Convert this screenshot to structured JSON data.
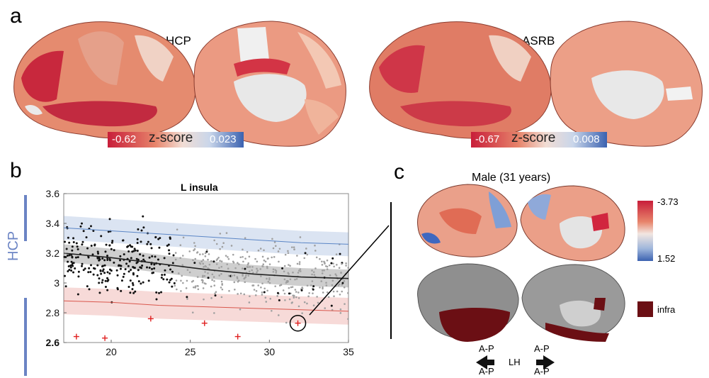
{
  "panel_a": {
    "letter": "a",
    "left_title": "HCP",
    "right_title": "ASRB",
    "left_colorbar": {
      "min_label": "-0.62",
      "mid_label": "z-score",
      "max_label": "0.023"
    },
    "right_colorbar": {
      "min_label": "-0.67",
      "mid_label": "z-score",
      "max_label": "0.008"
    }
  },
  "panel_b": {
    "letter": "b",
    "side_label": "HCP"
  },
  "panel_c": {
    "letter": "c",
    "title": "Male (31 years)",
    "colorbar": {
      "top_label": "-3.73",
      "bottom_label": "1.52"
    },
    "infra_label": "infra",
    "orientation": {
      "left_top": "A-P",
      "left_bottom": "A-P",
      "center": "LH",
      "right_top": "A-P",
      "right_bottom": "A-P"
    }
  },
  "chart_data": {
    "type": "scatter",
    "title": "L insula",
    "xlabel": "",
    "ylabel": "",
    "xlim": [
      17,
      35
    ],
    "ylim": [
      2.6,
      3.6
    ],
    "xticks": [
      20,
      25,
      30,
      35
    ],
    "yticks": [
      2.6,
      2.8,
      3.0,
      3.2,
      3.4,
      3.6
    ],
    "ytick_labels": [
      "2.6",
      "2.8",
      "3",
      "3.2",
      "3.4",
      "3.6"
    ],
    "grid": false,
    "curves": [
      {
        "name": "upper",
        "color": "#5b86c6",
        "x": [
          17,
          20,
          23,
          26,
          29,
          32,
          35
        ],
        "y": [
          3.37,
          3.35,
          3.33,
          3.31,
          3.29,
          3.27,
          3.26
        ],
        "band": 0.08
      },
      {
        "name": "median",
        "color": "#222222",
        "x": [
          17,
          20,
          23,
          26,
          29,
          32,
          35
        ],
        "y": [
          3.2,
          3.17,
          3.13,
          3.09,
          3.06,
          3.04,
          3.03
        ],
        "band": 0.06
      },
      {
        "name": "lower",
        "color": "#d9574d",
        "x": [
          17,
          20,
          23,
          26,
          29,
          32,
          35
        ],
        "y": [
          2.88,
          2.87,
          2.85,
          2.84,
          2.83,
          2.82,
          2.81
        ],
        "band": 0.09
      }
    ],
    "outliers": {
      "color": "#e02020",
      "x": [
        17.8,
        19.6,
        22.5,
        25.9,
        28.0,
        31.8
      ],
      "y": [
        2.64,
        2.63,
        2.76,
        2.73,
        2.64,
        2.73
      ]
    },
    "highlight": {
      "x": 31.8,
      "y": 2.73
    }
  }
}
